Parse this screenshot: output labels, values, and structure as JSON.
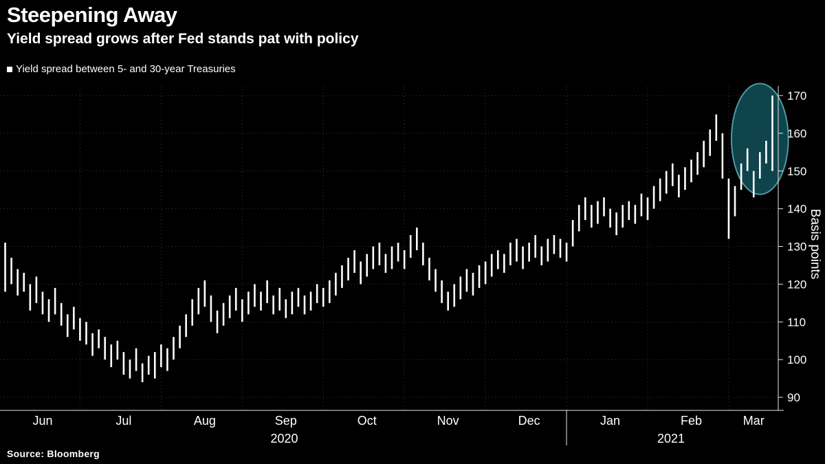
{
  "header": {
    "title": "Steepening Away",
    "subtitle": "Yield spread grows after Fed stands pat with policy"
  },
  "legend": {
    "label": "Yield spread between 5- and 30-year Treasuries"
  },
  "source": {
    "label": "Source: Bloomberg"
  },
  "chart_data": {
    "type": "bar",
    "subtype": "daily high-low range bars (OHLC-style)",
    "title": "Steepening Away",
    "xlabel": "",
    "ylabel": "Basis points",
    "ylim": [
      86,
      174
    ],
    "y_ticks": [
      90,
      100,
      110,
      120,
      130,
      140,
      150,
      160,
      170
    ],
    "months": [
      {
        "label": "Jun",
        "bars": 13
      },
      {
        "label": "Jul",
        "bars": 13
      },
      {
        "label": "Aug",
        "bars": 13
      },
      {
        "label": "Sep",
        "bars": 13
      },
      {
        "label": "Oct",
        "bars": 13
      },
      {
        "label": "Nov",
        "bars": 13
      },
      {
        "label": "Dec",
        "bars": 13
      },
      {
        "label": "Jan",
        "bars": 13
      },
      {
        "label": "Feb",
        "bars": 13
      },
      {
        "label": "Mar",
        "bars": 7
      }
    ],
    "years": [
      {
        "label": "2020",
        "from_month": 0,
        "to_month": 7
      },
      {
        "label": "2021",
        "from_month": 7,
        "to_month": 10
      }
    ],
    "bars_low_high": [
      [
        118,
        131
      ],
      [
        120,
        127
      ],
      [
        117,
        124
      ],
      [
        118,
        123
      ],
      [
        113,
        120
      ],
      [
        115,
        122
      ],
      [
        112,
        118
      ],
      [
        110,
        116
      ],
      [
        112,
        119
      ],
      [
        109,
        115
      ],
      [
        106,
        112
      ],
      [
        108,
        114
      ],
      [
        105,
        111
      ],
      [
        104,
        110
      ],
      [
        101,
        107
      ],
      [
        103,
        108
      ],
      [
        100,
        106
      ],
      [
        98,
        104
      ],
      [
        100,
        105
      ],
      [
        96,
        102
      ],
      [
        95,
        100
      ],
      [
        97,
        103
      ],
      [
        94,
        99
      ],
      [
        96,
        101
      ],
      [
        95,
        102
      ],
      [
        98,
        104
      ],
      [
        97,
        103
      ],
      [
        100,
        106
      ],
      [
        103,
        109
      ],
      [
        106,
        112
      ],
      [
        109,
        116
      ],
      [
        112,
        119
      ],
      [
        114,
        121
      ],
      [
        110,
        117
      ],
      [
        107,
        113
      ],
      [
        109,
        115
      ],
      [
        111,
        117
      ],
      [
        113,
        119
      ],
      [
        110,
        116
      ],
      [
        112,
        118
      ],
      [
        114,
        120
      ],
      [
        113,
        118
      ],
      [
        115,
        121
      ],
      [
        112,
        117
      ],
      [
        113,
        119
      ],
      [
        111,
        116
      ],
      [
        112,
        118
      ],
      [
        114,
        119
      ],
      [
        112,
        117
      ],
      [
        113,
        118
      ],
      [
        115,
        120
      ],
      [
        114,
        119
      ],
      [
        115,
        121
      ],
      [
        117,
        123
      ],
      [
        119,
        125
      ],
      [
        121,
        127
      ],
      [
        123,
        129
      ],
      [
        120,
        126
      ],
      [
        122,
        128
      ],
      [
        124,
        130
      ],
      [
        125,
        131
      ],
      [
        123,
        128
      ],
      [
        124,
        130
      ],
      [
        126,
        131
      ],
      [
        124,
        129
      ],
      [
        127,
        133
      ],
      [
        129,
        135
      ],
      [
        125,
        131
      ],
      [
        121,
        127
      ],
      [
        118,
        124
      ],
      [
        115,
        121
      ],
      [
        113,
        118
      ],
      [
        114,
        120
      ],
      [
        116,
        122
      ],
      [
        118,
        124
      ],
      [
        117,
        123
      ],
      [
        119,
        125
      ],
      [
        120,
        126
      ],
      [
        122,
        128
      ],
      [
        124,
        129
      ],
      [
        123,
        128
      ],
      [
        125,
        131
      ],
      [
        126,
        132
      ],
      [
        124,
        130
      ],
      [
        126,
        131
      ],
      [
        127,
        133
      ],
      [
        125,
        130
      ],
      [
        126,
        132
      ],
      [
        128,
        133
      ],
      [
        127,
        132
      ],
      [
        126,
        131
      ],
      [
        130,
        137
      ],
      [
        134,
        141
      ],
      [
        137,
        143
      ],
      [
        135,
        141
      ],
      [
        136,
        142
      ],
      [
        138,
        143
      ],
      [
        135,
        140
      ],
      [
        133,
        139
      ],
      [
        135,
        141
      ],
      [
        137,
        142
      ],
      [
        136,
        141
      ],
      [
        138,
        144
      ],
      [
        137,
        143
      ],
      [
        140,
        146
      ],
      [
        142,
        148
      ],
      [
        144,
        150
      ],
      [
        146,
        152
      ],
      [
        143,
        149
      ],
      [
        145,
        151
      ],
      [
        147,
        153
      ],
      [
        149,
        155
      ],
      [
        151,
        158
      ],
      [
        154,
        161
      ],
      [
        158,
        165
      ],
      [
        148,
        160
      ],
      [
        132,
        148
      ],
      [
        138,
        146
      ],
      [
        145,
        152
      ],
      [
        150,
        156
      ],
      [
        143,
        150
      ],
      [
        148,
        155
      ],
      [
        152,
        158
      ],
      [
        150,
        170
      ]
    ],
    "highlight": {
      "shape": "ellipse",
      "bar_index_center": 121.5,
      "bar_radius": 1.9,
      "value_center": 158.5,
      "value_radius": 14.7,
      "fill": "#10444c",
      "stroke": "#4e9aa3"
    },
    "colors": {
      "bar": "#ffffff",
      "grid": "#3d3d3d",
      "axis": "#e8e8e8",
      "text": "#ffffff",
      "background": "#000000"
    },
    "legend_position": "top-left",
    "grid": true
  }
}
